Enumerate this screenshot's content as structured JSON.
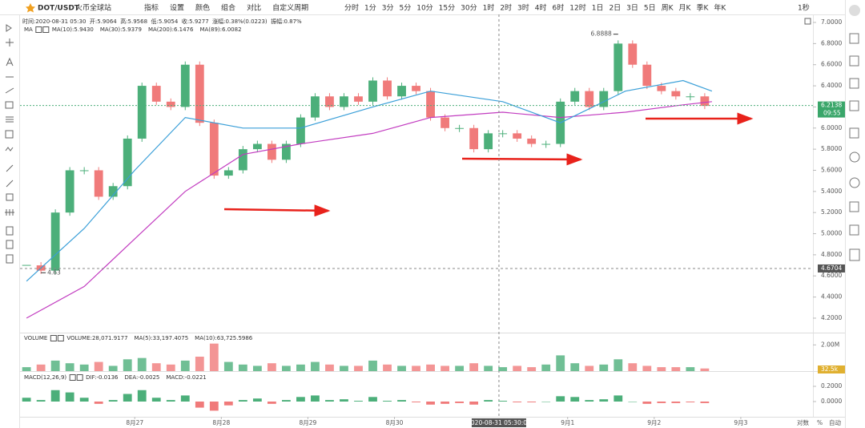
{
  "toolbar": {
    "symbol": "DOT/USDT",
    "exchange": "火币全球站",
    "tools": [
      "指标",
      "设置",
      "颜色",
      "组合",
      "对比",
      "自定义周期"
    ],
    "periods": [
      "分时",
      "1分",
      "3分",
      "5分",
      "10分",
      "15分",
      "30分",
      "1时",
      "2时",
      "3时",
      "4时",
      "6时",
      "12时",
      "1日",
      "2日",
      "3日",
      "5日",
      "周K",
      "月K",
      "季K",
      "年K"
    ],
    "active_period": 5,
    "refresh": "1秒"
  },
  "info_line": "时间:2020-08-31 05:30  开:5.9064  高:5.9568  低:5.9054  收:5.9277  涨幅:0.38%(0.0223)  振幅:0.87%",
  "bottom_right": [
    "对数",
    "%",
    "自动"
  ],
  "chart_data": [
    {
      "type": "candlestick",
      "legend_title": "MA",
      "up_color": "#4caf7a",
      "down_color": "#f07a7a",
      "values": [
        4.7,
        4.65,
        5.2,
        5.6,
        5.6,
        5.35,
        5.45,
        5.9,
        6.4,
        6.25,
        6.2,
        6.6,
        6.05,
        5.55,
        5.6,
        5.8,
        5.85,
        5.7,
        5.85,
        6.1,
        6.3,
        6.2,
        6.3,
        6.25,
        6.45,
        6.3,
        6.4,
        6.35,
        6.1,
        6.0,
        6.0,
        5.8,
        5.95,
        5.95,
        5.9,
        5.85,
        5.85,
        6.25,
        6.35,
        6.2,
        6.35,
        6.8,
        6.6,
        6.4,
        6.35,
        6.3,
        6.3,
        6.21
      ],
      "series": [
        {
          "name": "MA(10):5.9430",
          "color": "#2bb3a3"
        },
        {
          "name": "MA(30):5.9379",
          "color": "#e0a030"
        },
        {
          "name": "MA(200):6.1476",
          "color": "#c23cc0",
          "x": [
            0,
            4,
            7.5,
            11,
            15,
            19,
            24,
            28,
            33,
            37,
            41.5,
            45.5,
            47.5
          ],
          "values": [
            4.2,
            4.5,
            4.95,
            5.4,
            5.75,
            5.85,
            5.95,
            6.1,
            6.15,
            6.1,
            6.15,
            6.22,
            6.25
          ]
        },
        {
          "name": "MA(89):6.0082",
          "color": "#3a9fd8",
          "x": [
            0,
            4,
            7.5,
            11,
            15,
            19,
            24,
            28,
            33,
            37,
            41.5,
            45.5,
            47.5
          ],
          "values": [
            4.55,
            5.05,
            5.6,
            6.1,
            6.0,
            6.0,
            6.2,
            6.35,
            6.25,
            6.05,
            6.35,
            6.45,
            6.35
          ]
        }
      ],
      "xlim": [
        -0.45,
        54.5
      ],
      "xticks": [
        {
          "value": 7.5,
          "label": "8月27"
        },
        {
          "value": 13.5,
          "label": "8月28"
        },
        {
          "value": 19.5,
          "label": "8月29"
        },
        {
          "value": 25.5,
          "label": "8月30"
        },
        {
          "value": 37.5,
          "label": "9月1"
        },
        {
          "value": 43.5,
          "label": "9月2"
        },
        {
          "value": 49.5,
          "label": "9月3"
        }
      ],
      "ylim": [
        4.063,
        7.076
      ],
      "yticks": [
        {
          "value": 4.2,
          "label": "4.2000"
        },
        {
          "value": 4.4,
          "label": "4.4000"
        },
        {
          "value": 4.6,
          "label": "4.6000"
        },
        {
          "value": 4.8,
          "label": "4.8000"
        },
        {
          "value": 5.0,
          "label": "5.0000"
        },
        {
          "value": 5.2,
          "label": "5.2000"
        },
        {
          "value": 5.4,
          "label": "5.4000"
        },
        {
          "value": 5.6,
          "label": "5.6000"
        },
        {
          "value": 5.8,
          "label": "5.8000"
        },
        {
          "value": 6.0,
          "label": "6.0000"
        },
        {
          "value": 6.2,
          "label": "6.2000"
        },
        {
          "value": 6.4,
          "label": "6.4000"
        },
        {
          "value": 6.6,
          "label": "6.6000"
        },
        {
          "value": 6.8,
          "label": "6.8000"
        },
        {
          "value": 7.0,
          "label": "7.0000"
        }
      ],
      "last_price": {
        "value": 6.2138,
        "label": "6.2138",
        "time": "09:55"
      },
      "crosshair": {
        "x": 32.74,
        "x_label": "2020-08-31 05:30:00",
        "y": 4.6704,
        "y_label": "4.6704"
      },
      "annotations": [
        {
          "x": 41,
          "value": 6.8888
        },
        {
          "x": 1,
          "value": 4.63
        }
      ]
    },
    {
      "type": "bar",
      "legend_title": "VOLUME",
      "legend": [
        "VOLUME:28,071.9177",
        "MA(5):33,197.4075",
        "MA(10):63,725.5986"
      ],
      "values": [
        0.3,
        0.5,
        0.8,
        0.6,
        0.5,
        0.7,
        0.4,
        0.9,
        1.0,
        0.6,
        0.5,
        0.8,
        1.1,
        2.1,
        0.7,
        0.5,
        0.4,
        0.6,
        0.4,
        0.5,
        0.7,
        0.5,
        0.4,
        0.4,
        0.8,
        0.5,
        0.4,
        0.4,
        0.5,
        0.4,
        0.4,
        0.6,
        0.4,
        0.3,
        0.4,
        0.3,
        0.5,
        1.2,
        0.6,
        0.4,
        0.5,
        0.9,
        0.6,
        0.4,
        0.3,
        0.3,
        0.3,
        0.2
      ],
      "ylim": [
        0,
        2.875
      ],
      "yticks": [
        {
          "value": 2,
          "label": "2.00M"
        }
      ],
      "current_label": "32.5k"
    },
    {
      "type": "histogram",
      "legend_title": "MACD(12,26,9)",
      "legend": [
        {
          "name": "DIF:-0.0136",
          "color": "#2bb3a3"
        },
        {
          "name": "DEA:-0.0025",
          "color": "#e0a030"
        },
        {
          "name": "MACD:-0.0221",
          "color": "#c23cc0"
        }
      ],
      "values": [
        0.05,
        0.02,
        0.15,
        0.12,
        0.05,
        -0.03,
        0.02,
        0.1,
        0.15,
        0.05,
        0.02,
        0.08,
        -0.08,
        -0.12,
        -0.05,
        0.02,
        0.04,
        -0.03,
        0.02,
        0.06,
        0.08,
        0.02,
        0.03,
        0.01,
        0.06,
        0.01,
        0.02,
        -0.01,
        -0.04,
        -0.03,
        -0.02,
        -0.04,
        0.02,
        0.01,
        -0.01,
        -0.01,
        0.0,
        0.07,
        0.06,
        0.02,
        0.03,
        0.08,
        0.0,
        -0.03,
        -0.02,
        -0.02,
        -0.01,
        -0.02
      ],
      "ylim": [
        -0.2,
        0.379
      ],
      "yticks": [
        {
          "value": 0.2,
          "label": "0.2000"
        },
        {
          "value": 0,
          "label": "0.0000"
        }
      ]
    }
  ]
}
